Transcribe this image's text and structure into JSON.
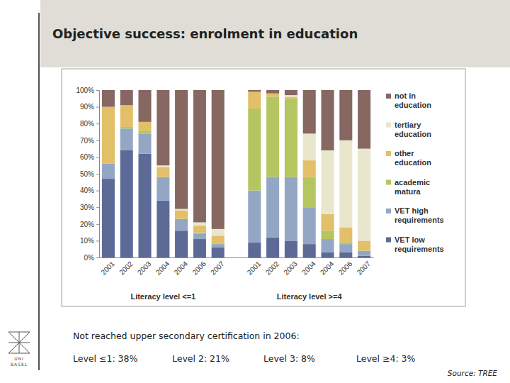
{
  "chart_data": {
    "type": "bar",
    "stacked": true,
    "grid": false,
    "legend": "right",
    "categories": [
      "2001",
      "2002",
      "2003",
      "2004",
      "2004",
      "2006",
      "2007",
      null,
      "2001",
      "2002",
      "2003",
      "2004",
      "2004",
      "2006",
      "2007"
    ],
    "xlabels": [
      "Literacy level <=1",
      "Literacy level >=4"
    ],
    "ylim": [
      0,
      100
    ],
    "yticks": [
      {
        "value": 0,
        "label": "0%"
      },
      {
        "value": 10,
        "label": "10%"
      },
      {
        "value": 20,
        "label": "20%"
      },
      {
        "value": 30,
        "label": "30%"
      },
      {
        "value": 40,
        "label": "40%"
      },
      {
        "value": 50,
        "label": "50%"
      },
      {
        "value": 60,
        "label": "60%"
      },
      {
        "value": 70,
        "label": "70%"
      },
      {
        "value": 80,
        "label": "80%"
      },
      {
        "value": 90,
        "label": "90%"
      },
      {
        "value": 100,
        "label": "100%"
      }
    ],
    "series": [
      {
        "name": "VET low requirements",
        "color": "#5d6a97",
        "values": [
          47,
          64,
          62,
          34,
          16,
          11,
          6,
          null,
          9,
          12,
          10,
          8,
          3,
          3,
          1
        ]
      },
      {
        "name": "VET high requirements",
        "color": "#93a7c5",
        "values": [
          9,
          13,
          12,
          14,
          7,
          3,
          2,
          null,
          31,
          36,
          38,
          22,
          8,
          5,
          3
        ]
      },
      {
        "name": "academic matura",
        "color": "#b5c660",
        "values": [
          0,
          1,
          2,
          0,
          0,
          1,
          0,
          null,
          49,
          48,
          47,
          18,
          5,
          1,
          0
        ]
      },
      {
        "name": "other education",
        "color": "#e2bf68",
        "values": [
          34,
          13,
          5,
          6,
          5,
          4,
          5,
          null,
          10,
          2,
          1,
          10,
          10,
          9,
          6
        ]
      },
      {
        "name": "tertiary education",
        "color": "#e8e6cc",
        "values": [
          0,
          0,
          0,
          1,
          1,
          2,
          4,
          null,
          0,
          0,
          1,
          16,
          38,
          52,
          55
        ]
      },
      {
        "name": "not in education",
        "color": "#866761",
        "values": [
          10,
          9,
          19,
          45,
          71,
          79,
          83,
          null,
          1,
          2,
          3,
          26,
          36,
          30,
          35
        ]
      }
    ]
  },
  "slide": {
    "title": "Objective success: enrolment in education",
    "note_heading": "Not reached upper secondary certification in 2006:",
    "note_items": [
      "Level ≤1: 38%",
      "Level 2: 21%",
      "Level 3: 8%",
      "Level ≥4: 3%"
    ],
    "source": "Source: TREE",
    "logo_text": [
      "UNI",
      "BASEL"
    ]
  }
}
